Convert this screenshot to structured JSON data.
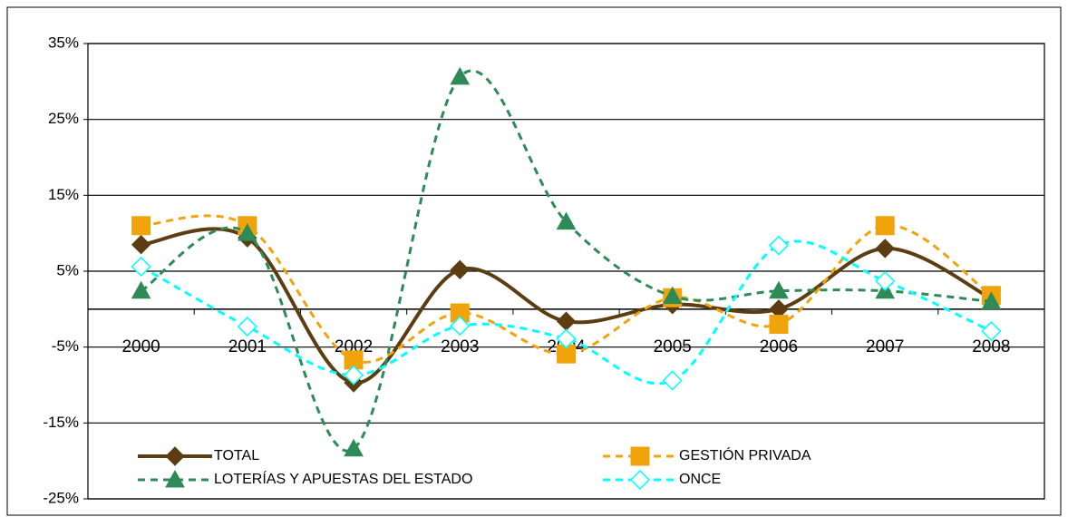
{
  "chart_data": {
    "type": "line",
    "categories": [
      "2000",
      "2001",
      "2002",
      "2003",
      "2004",
      "2005",
      "2006",
      "2007",
      "2008"
    ],
    "series": [
      {
        "name": "TOTAL",
        "color": "#5c3d11",
        "dash": "solid",
        "marker": "diamond",
        "values": [
          8.5,
          9.4,
          -9.7,
          5.2,
          -1.6,
          0.6,
          0,
          8,
          1.4
        ]
      },
      {
        "name": "GESTIÓN PRIVADA",
        "color": "#f0a30a",
        "dash": "dashed",
        "marker": "square",
        "values": [
          11,
          11,
          -6.7,
          -0.5,
          -5.9,
          1.5,
          -2,
          11,
          1.8
        ]
      },
      {
        "name": "LOTERÍAS Y APUESTAS DEL ESTADO",
        "color": "#2e8b57",
        "dash": "dashed",
        "marker": "triangle",
        "values": [
          2.4,
          10,
          -18.4,
          30.6,
          11.5,
          1.7,
          2.4,
          2.4,
          1
        ]
      },
      {
        "name": "ONCE",
        "color": "#00ffff",
        "dash": "dashed",
        "marker": "hollow-diamond",
        "values": [
          5.6,
          -2.3,
          -8.7,
          -2.2,
          -3.9,
          -9.4,
          8.4,
          3.7,
          -2.9
        ]
      }
    ],
    "ylim": [
      -25,
      35
    ],
    "yticks": [
      {
        "value": 35,
        "label": "35%"
      },
      {
        "value": 25,
        "label": "25%"
      },
      {
        "value": 15,
        "label": "15%"
      },
      {
        "value": 5,
        "label": "5%"
      },
      {
        "value": -5,
        "label": "-5%"
      },
      {
        "value": -15,
        "label": "-15%"
      },
      {
        "value": -25,
        "label": "-25%"
      }
    ],
    "grid": true,
    "smooth": true,
    "legend": "bottom"
  }
}
